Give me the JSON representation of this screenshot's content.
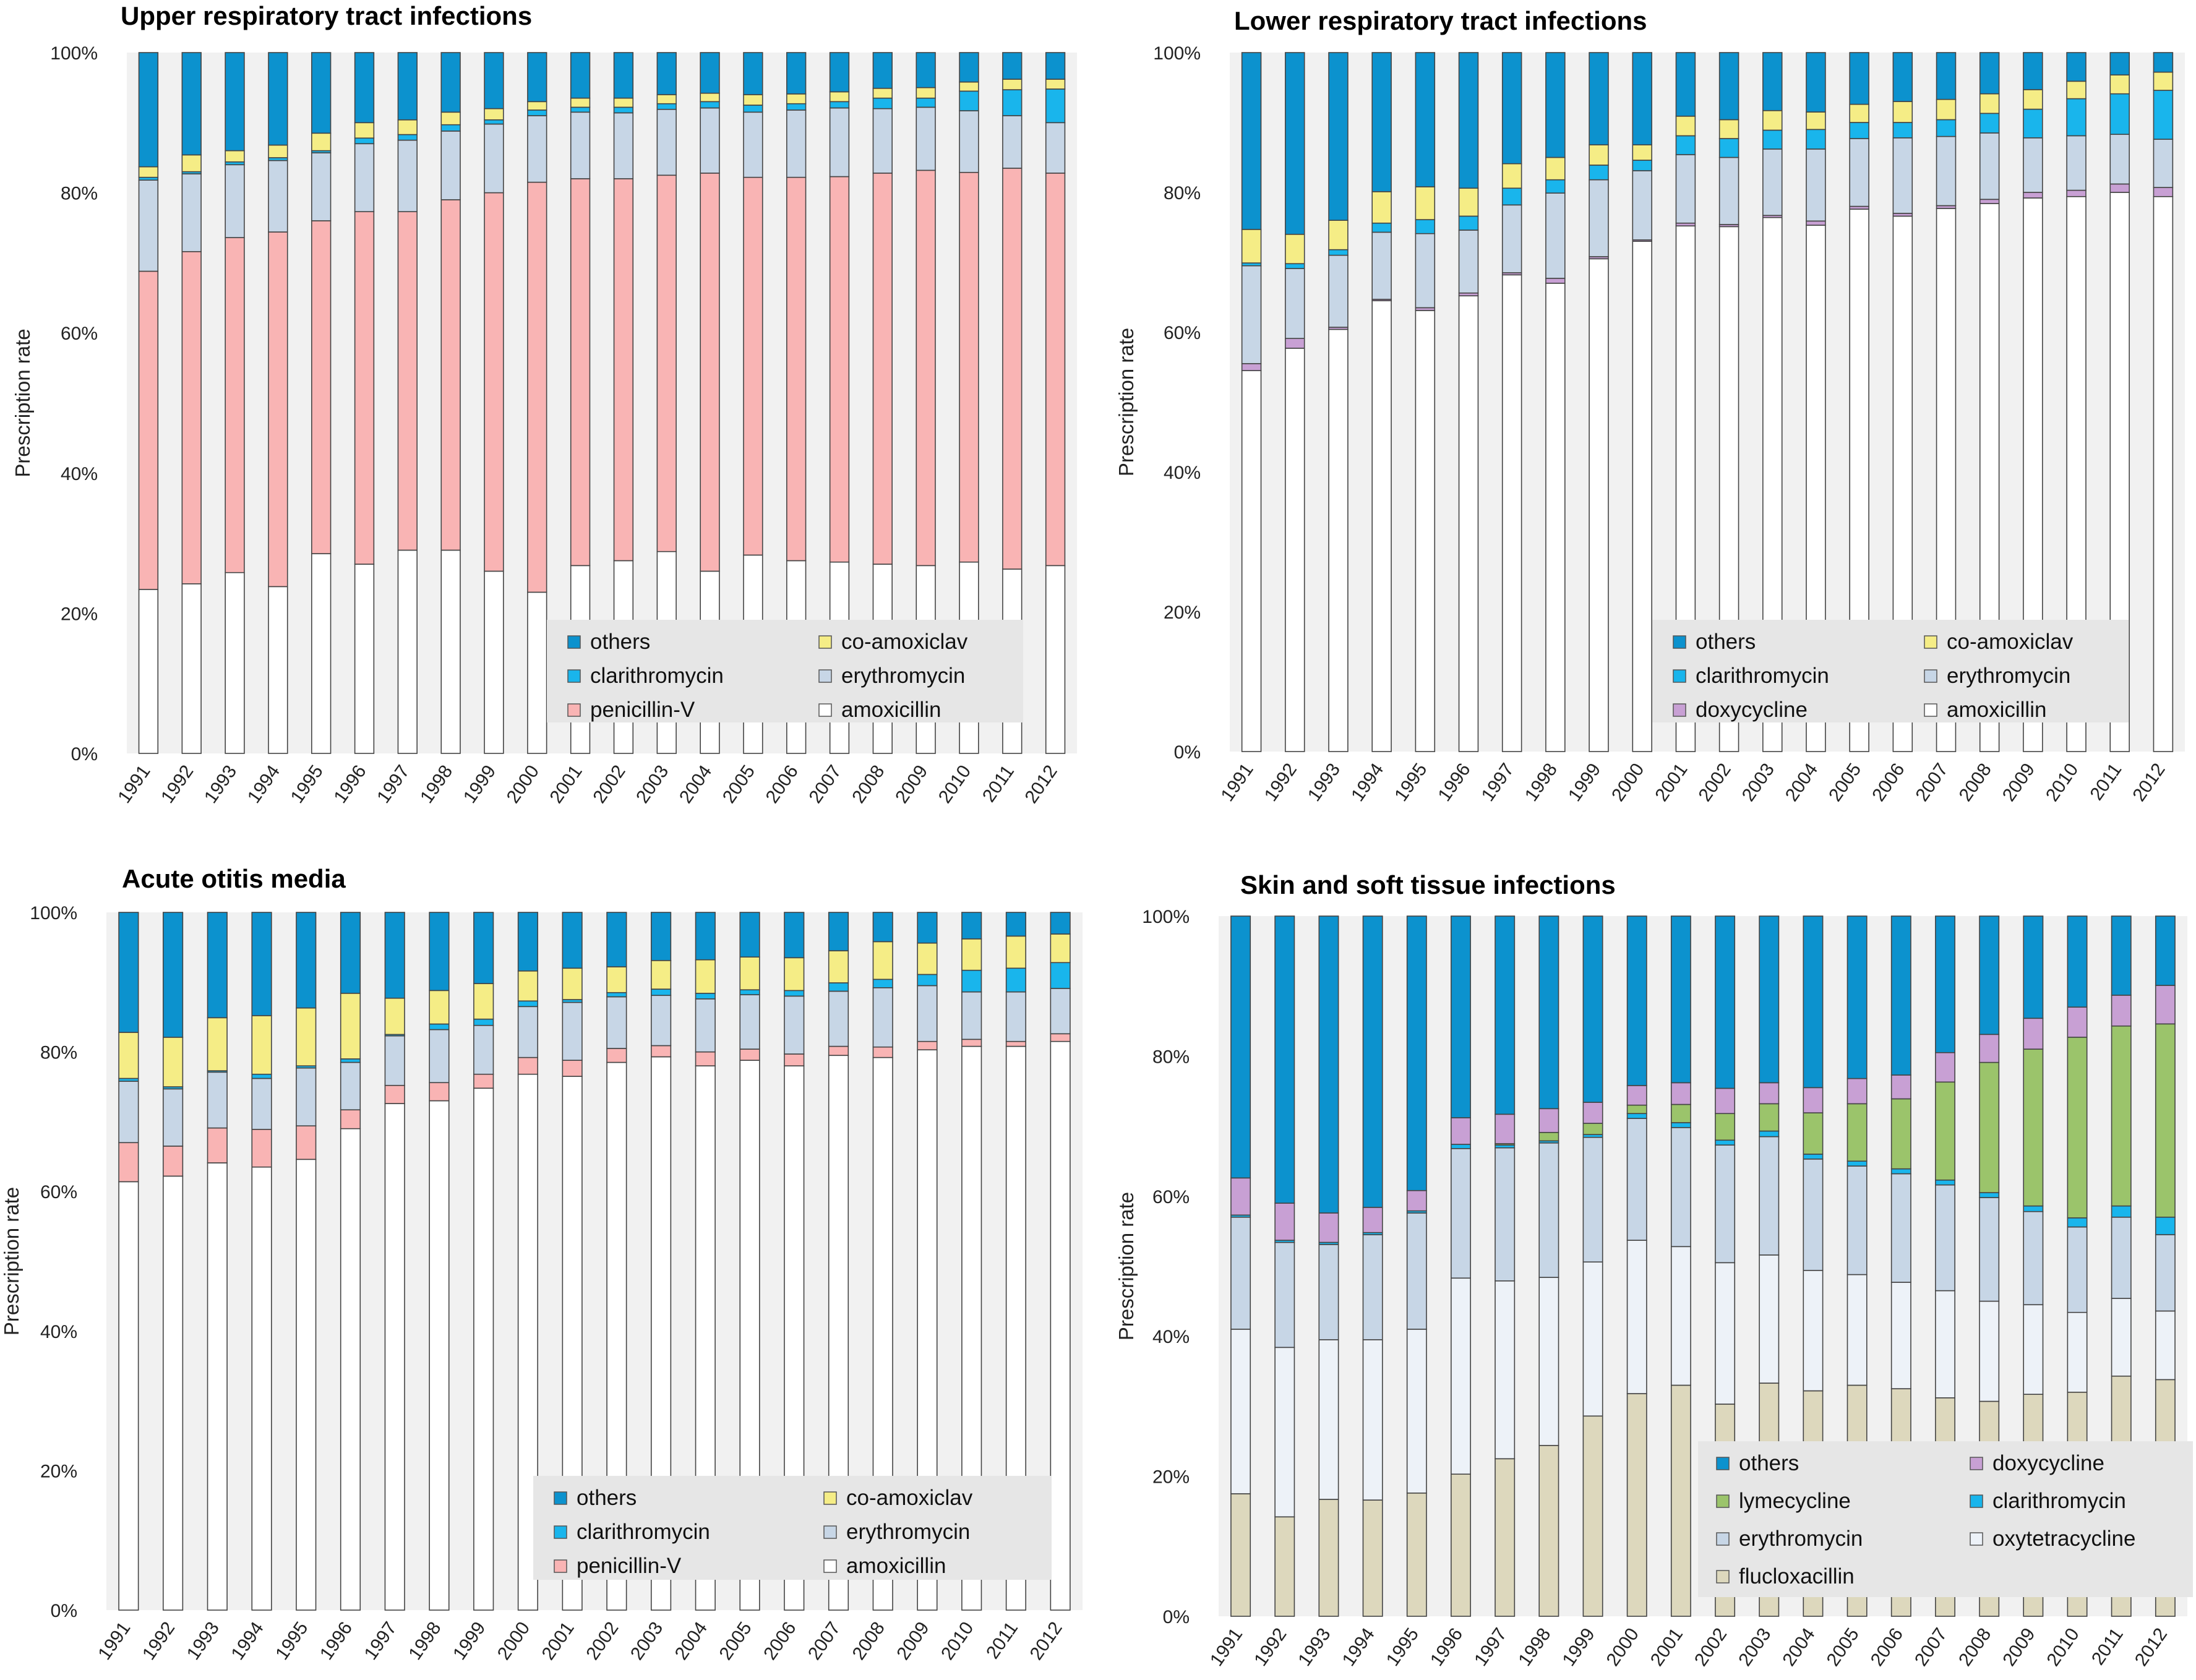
{
  "chart_data": [
    {
      "type": "bar",
      "stacked": true,
      "title": "Upper respiratory tract infections",
      "xlabel": "",
      "ylabel": "Prescription rate",
      "ylim": [
        0,
        100
      ],
      "ytick_labels": [
        "0%",
        "20%",
        "40%",
        "60%",
        "80%",
        "100%"
      ],
      "categories": [
        "1991",
        "1992",
        "1993",
        "1994",
        "1995",
        "1996",
        "1997",
        "1998",
        "1999",
        "2000",
        "2001",
        "2002",
        "2003",
        "2004",
        "2005",
        "2006",
        "2007",
        "2008",
        "2009",
        "2010",
        "2011",
        "2012"
      ],
      "legend_position": "bottom-right",
      "legend_order": [
        "others",
        "co-amoxiclav",
        "clarithromycin",
        "erythromycin",
        "penicillin-V",
        "amoxicillin"
      ],
      "series": [
        {
          "name": "amoxicillin",
          "color": "#ffffff",
          "values": [
            23.4,
            24.2,
            25.8,
            23.8,
            28.5,
            27,
            29,
            29,
            26,
            23,
            26.8,
            27.5,
            28.8,
            26,
            28.3,
            27.5,
            27.3,
            27,
            26.8,
            27.3,
            26.3,
            26.8
          ]
        },
        {
          "name": "penicillin-V",
          "color": "#f9b4b4",
          "values": [
            45.4,
            47.4,
            47.8,
            50.6,
            47.5,
            50.3,
            48.3,
            50,
            54,
            58.5,
            55.2,
            54.5,
            53.7,
            56.8,
            53.9,
            54.7,
            55,
            55.8,
            56.4,
            55.6,
            57.2,
            56
          ]
        },
        {
          "name": "erythromycin",
          "color": "#c7d6e6",
          "values": [
            13,
            11.1,
            10.4,
            10.2,
            9.7,
            9.7,
            10.2,
            9.8,
            9.8,
            9.5,
            9.5,
            9.4,
            9.4,
            9.3,
            9.3,
            9.6,
            9.8,
            9.2,
            9,
            8.8,
            7.5,
            7.2
          ]
        },
        {
          "name": "clarithromycin",
          "color": "#19b5ec",
          "values": [
            0.4,
            0.3,
            0.4,
            0.4,
            0.3,
            0.8,
            0.8,
            0.9,
            0.6,
            0.8,
            0.7,
            0.8,
            0.8,
            0.9,
            1,
            0.9,
            0.9,
            1.5,
            1.3,
            2.8,
            3.7,
            4.8
          ]
        },
        {
          "name": "co-amoxiclav",
          "color": "#f5ed86",
          "values": [
            1.5,
            2.4,
            1.6,
            1.8,
            2.5,
            2.2,
            2.1,
            1.8,
            1.6,
            1.2,
            1.3,
            1.3,
            1.3,
            1.2,
            1.5,
            1.4,
            1.4,
            1.4,
            1.5,
            1.3,
            1.5,
            1.4
          ]
        },
        {
          "name": "others",
          "color": "#0c92ce",
          "values": [
            16.3,
            14.6,
            14,
            13.2,
            11.5,
            10,
            9.6,
            8.5,
            8,
            7,
            6.5,
            6.5,
            6,
            5.8,
            6,
            5.9,
            5.6,
            5.1,
            5,
            4.2,
            3.8,
            3.8
          ]
        }
      ]
    },
    {
      "type": "bar",
      "stacked": true,
      "title": "Lower respiratory tract infections",
      "xlabel": "",
      "ylabel": "Prescription rate",
      "ylim": [
        0,
        100
      ],
      "ytick_labels": [
        "0%",
        "20%",
        "40%",
        "60%",
        "80%",
        "100%"
      ],
      "categories": [
        "1991",
        "1992",
        "1993",
        "1994",
        "1995",
        "1996",
        "1997",
        "1998",
        "1999",
        "2000",
        "2001",
        "2002",
        "2003",
        "2004",
        "2005",
        "2006",
        "2007",
        "2008",
        "2009",
        "2010",
        "2011",
        "2012"
      ],
      "legend_position": "bottom-right",
      "legend_order": [
        "others",
        "co-amoxiclav",
        "clarithromycin",
        "erythromycin",
        "doxycycline",
        "amoxicillin"
      ],
      "series": [
        {
          "name": "amoxicillin",
          "color": "#ffffff",
          "values": [
            54.5,
            57.7,
            60.4,
            64.5,
            63.1,
            65.2,
            68.2,
            67,
            70.5,
            73,
            75.2,
            75.1,
            76.4,
            75.3,
            77.6,
            76.6,
            77.7,
            78.4,
            79.2,
            79.4,
            80,
            79.4
          ]
        },
        {
          "name": "doxycycline",
          "color": "#c8a0d4",
          "values": [
            1,
            1.4,
            0.3,
            0.2,
            0.4,
            0.4,
            0.3,
            0.7,
            0.3,
            0.2,
            0.4,
            0.3,
            0.3,
            0.6,
            0.4,
            0.4,
            0.4,
            0.6,
            0.8,
            0.9,
            1.2,
            1.3
          ]
        },
        {
          "name": "erythromycin",
          "color": "#c7d6e6",
          "values": [
            14,
            10,
            10.3,
            9.6,
            10.6,
            9,
            9.7,
            12.2,
            11,
            9.9,
            9.8,
            9.6,
            9.5,
            10.3,
            9.7,
            10.8,
            9.9,
            9.5,
            7.8,
            7.8,
            7.1,
            6.9
          ]
        },
        {
          "name": "clarithromycin",
          "color": "#19b5ec",
          "values": [
            0.4,
            0.7,
            0.8,
            1.3,
            2,
            2,
            2.4,
            1.9,
            2.1,
            1.5,
            2.7,
            2.7,
            2.7,
            2.8,
            2.3,
            2.2,
            2.4,
            2.8,
            4.1,
            5.3,
            5.8,
            7
          ]
        },
        {
          "name": "co-amoxiclav",
          "color": "#f5ed86",
          "values": [
            4.8,
            4.2,
            4.2,
            4.5,
            4.7,
            4,
            3.5,
            3.2,
            2.9,
            2.2,
            2.8,
            2.7,
            2.8,
            2.5,
            2.6,
            3,
            2.9,
            2.8,
            2.8,
            2.5,
            2.7,
            2.6
          ]
        },
        {
          "name": "others",
          "color": "#0c92ce",
          "values": [
            25.3,
            26,
            24,
            19.9,
            19.2,
            19.4,
            15.9,
            15,
            13.2,
            13.2,
            9.1,
            9.6,
            8.3,
            8.5,
            7.4,
            7,
            6.7,
            5.9,
            5.3,
            4.1,
            3.2,
            2.8
          ]
        }
      ]
    },
    {
      "type": "bar",
      "stacked": true,
      "title": "Acute otitis media",
      "xlabel": "",
      "ylabel": "Prescription rate",
      "ylim": [
        0,
        100
      ],
      "ytick_labels": [
        "0%",
        "20%",
        "40%",
        "60%",
        "80%",
        "100%"
      ],
      "categories": [
        "1991",
        "1992",
        "1993",
        "1994",
        "1995",
        "1996",
        "1997",
        "1998",
        "1999",
        "2000",
        "2001",
        "2002",
        "2003",
        "2004",
        "2005",
        "2006",
        "2007",
        "2008",
        "2009",
        "2010",
        "2011",
        "2012"
      ],
      "legend_position": "bottom-right",
      "legend_order": [
        "others",
        "co-amoxiclav",
        "clarithromycin",
        "erythromycin",
        "penicillin-V",
        "amoxicillin"
      ],
      "series": [
        {
          "name": "amoxicillin",
          "color": "#ffffff",
          "values": [
            61.4,
            62.2,
            64.1,
            63.5,
            64.6,
            69,
            72.6,
            73,
            74.8,
            76.8,
            76.5,
            78.5,
            79.3,
            78,
            78.8,
            78,
            79.5,
            79.2,
            80.3,
            80.8,
            80.8,
            81.5
          ]
        },
        {
          "name": "penicillin-V",
          "color": "#f9b4b4",
          "values": [
            5.6,
            4.3,
            5,
            5.4,
            4.8,
            2.7,
            2.6,
            2.6,
            2,
            2.4,
            2.3,
            2,
            1.6,
            2,
            1.6,
            1.7,
            1.3,
            1.5,
            1.2,
            1,
            0.7,
            1.1
          ]
        },
        {
          "name": "erythromycin",
          "color": "#c7d6e6",
          "values": [
            8.8,
            8.2,
            8,
            7.3,
            8.3,
            6.8,
            7.1,
            7.6,
            7,
            7.3,
            8.3,
            7.4,
            7.2,
            7.6,
            7.8,
            8.3,
            7.9,
            8.5,
            8,
            6.8,
            7.1,
            6.5
          ]
        },
        {
          "name": "clarithromycin",
          "color": "#19b5ec",
          "values": [
            0.4,
            0.3,
            0.2,
            0.6,
            0.3,
            0.5,
            0.2,
            0.8,
            0.9,
            0.8,
            0.4,
            0.6,
            0.9,
            0.8,
            0.7,
            0.8,
            1.2,
            1.2,
            1.6,
            3.1,
            3.4,
            3.7
          ]
        },
        {
          "name": "co-amoxiclav",
          "color": "#f5ed86",
          "values": [
            6.6,
            7.1,
            7.6,
            8.4,
            8.3,
            9.4,
            5.2,
            4.8,
            5.1,
            4.3,
            4.5,
            3.7,
            4.1,
            4.8,
            4.7,
            4.7,
            4.6,
            5.4,
            4.5,
            4.5,
            4.6,
            4.1
          ]
        },
        {
          "name": "others",
          "color": "#0c92ce",
          "values": [
            17.2,
            17.9,
            15.1,
            14.8,
            13.7,
            11.6,
            12.3,
            11.2,
            10.2,
            8.4,
            8,
            7.8,
            6.9,
            6.8,
            6.4,
            6.5,
            5.5,
            4.2,
            4.4,
            3.8,
            3.4,
            3.1
          ]
        }
      ]
    },
    {
      "type": "bar",
      "stacked": true,
      "title": "Skin and soft tissue infections",
      "xlabel": "",
      "ylabel": "Prescription rate",
      "ylim": [
        0,
        100
      ],
      "ytick_labels": [
        "0%",
        "20%",
        "40%",
        "60%",
        "80%",
        "100%"
      ],
      "categories": [
        "1991",
        "1992",
        "1993",
        "1994",
        "1995",
        "1996",
        "1997",
        "1998",
        "1999",
        "2000",
        "2001",
        "2002",
        "2003",
        "2004",
        "2005",
        "2006",
        "2007",
        "2008",
        "2009",
        "2010",
        "2011",
        "2012"
      ],
      "legend_position": "bottom-right",
      "legend_order": [
        "others",
        "doxycycline",
        "lymecycline",
        "clarithromycin",
        "erythromycin",
        "oxytetracycline",
        "flucloxacillin"
      ],
      "series": [
        {
          "name": "flucloxacillin",
          "color": "#ddd8bd",
          "values": [
            17.5,
            14.2,
            16.7,
            16.6,
            17.6,
            20.3,
            22.5,
            24.4,
            28.6,
            31.8,
            33,
            30.3,
            33.3,
            32.2,
            33,
            32.5,
            31.2,
            30.7,
            31.7,
            32,
            34.3,
            33.8
          ]
        },
        {
          "name": "oxytetracycline",
          "color": "#edf2f8",
          "values": [
            23.5,
            24.2,
            22.8,
            22.9,
            23.4,
            28,
            25.4,
            24,
            22,
            21.9,
            19.8,
            20.2,
            18.3,
            17.2,
            15.8,
            15.2,
            15.3,
            14.3,
            12.8,
            11.4,
            11.1,
            9.8
          ]
        },
        {
          "name": "erythromycin",
          "color": "#c7d6e6",
          "values": [
            16,
            15,
            13.6,
            15,
            16.6,
            18.5,
            19,
            19.2,
            17.8,
            17.4,
            17,
            16.8,
            16.9,
            15.9,
            15.5,
            15.5,
            15.1,
            14.8,
            13.3,
            12.2,
            11.6,
            10.9
          ]
        },
        {
          "name": "clarithromycin",
          "color": "#19b5ec",
          "values": [
            0.3,
            0.3,
            0.3,
            0.3,
            0.3,
            0.6,
            0.4,
            0.3,
            0.4,
            0.7,
            0.7,
            0.7,
            0.8,
            0.7,
            0.7,
            0.7,
            0.7,
            0.7,
            0.8,
            1.3,
            1.6,
            2.5
          ]
        },
        {
          "name": "lymecycline",
          "color": "#9bc46b",
          "values": [
            0,
            0,
            0,
            0,
            0,
            0,
            0.2,
            1.2,
            1.6,
            1.2,
            2.6,
            3.8,
            3.9,
            5.9,
            8.2,
            10,
            14,
            18.6,
            22.4,
            25.8,
            25.7,
            27.6
          ]
        },
        {
          "name": "doxycycline",
          "color": "#c8a0d4",
          "values": [
            5.3,
            5.3,
            4.2,
            3.6,
            2.9,
            3.8,
            4.2,
            3.4,
            3,
            2.8,
            3.1,
            3.6,
            3,
            3.6,
            3.6,
            3.4,
            4.2,
            4,
            4.4,
            4.3,
            4.4,
            5.5
          ]
        },
        {
          "name": "others",
          "color": "#0c92ce",
          "values": [
            37.4,
            41,
            42.4,
            41.6,
            39.2,
            28.8,
            28.3,
            27.5,
            26.6,
            24.2,
            23.8,
            24.6,
            23.8,
            24.5,
            23.2,
            22.7,
            19.5,
            16.9,
            14.6,
            13,
            11.3,
            9.9
          ]
        }
      ]
    }
  ]
}
